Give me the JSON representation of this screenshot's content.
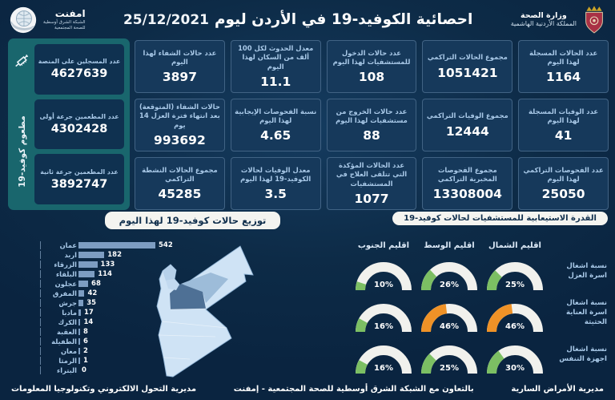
{
  "header": {
    "title": "احصائية الكوفيد-19 في الأردن ليوم",
    "date": "25/12/2021",
    "ministry": {
      "line1": "وزارة الصحة",
      "line2": "المملكة الأردنية الهاشمية"
    },
    "emphnet": {
      "name": "امفنت",
      "line1": "الشبكة الشرق أوسطية",
      "line2": "للصحة المجتمعية"
    }
  },
  "sidebar": {
    "vertical_label": "مطعوم كوفيد-19",
    "cards": [
      {
        "label": "عدد المسجلين على المنصة",
        "value": "4627639"
      },
      {
        "label": "عدد المطعمين جرعة أولى",
        "value": "4302428"
      },
      {
        "label": "عدد المطعمين جرعة ثانية",
        "value": "3892747"
      }
    ]
  },
  "stats": [
    {
      "label": "عدد الحالات المسجلة لهذا اليوم",
      "value": "1164"
    },
    {
      "label": "مجموع الحالات التراكمي",
      "value": "1051421"
    },
    {
      "label": "عدد حالات الدخول للمستشفيات لهذا اليوم",
      "value": "108"
    },
    {
      "label": "معدل الحدوث لكل 100 ألف من السكان لهذا اليوم",
      "value": "11.1"
    },
    {
      "label": "عدد حالات الشفاء لهذا اليوم",
      "value": "3897"
    },
    {
      "label": "عدد الوفيات المسجلة لهذا اليوم",
      "value": "41"
    },
    {
      "label": "مجموع الوفيات التراكمي",
      "value": "12444"
    },
    {
      "label": "عدد حالات الخروج من مستشفيات لهذا اليوم",
      "value": "88"
    },
    {
      "label": "نسبة الفحوصات الإيجابية لهذا اليوم",
      "value": "4.65"
    },
    {
      "label": "حالات الشفاء (المتوقعة) بعد انتهاء فترة العزل 14 يوم",
      "value": "993692"
    },
    {
      "label": "عدد الفحوصات التراكمي لهذا اليوم",
      "value": "25050"
    },
    {
      "label": "مجموع الفحوصات المخبرية التراكمي",
      "value": "13308004"
    },
    {
      "label": "عدد الحالات المؤكدة التي تتلقى العلاج في المستشفيات",
      "value": "1077"
    },
    {
      "label": "معدل الوفيات لحالات الكوفيد-19 لهذا اليوم",
      "value": "3.5"
    },
    {
      "label": "مجموع الحالات النشطة التراكمي",
      "value": "45285"
    }
  ],
  "chart_data": [
    {
      "type": "bar",
      "title": "توزيع حالات كوفيد-19 لهذا اليوم",
      "orientation": "horizontal",
      "categories": [
        "عمان",
        "اربد",
        "الزرقاء",
        "البلقاء",
        "عجلون",
        "المفرق",
        "جرش",
        "مادبا",
        "الكرك",
        "العقبة",
        "الطفيلة",
        "معان",
        "الرمثا",
        "البتراء"
      ],
      "values": [
        542,
        182,
        133,
        114,
        68,
        42,
        35,
        17,
        14,
        8,
        6,
        2,
        1,
        0
      ],
      "xlim": [
        0,
        542
      ],
      "bar_color": "#7d9dc2",
      "grid": "off",
      "legend": "none"
    },
    {
      "type": "gauge",
      "title": "القدرة الاستيعابية للمستشفيات لحالات كوفيد-19",
      "unit": "%",
      "columns": [
        "اقليم الشمال",
        "اقليم الوسط",
        "اقليم الجنوب"
      ],
      "rows": [
        {
          "label": "نسبة اشغال اسرة العزل",
          "values": [
            25,
            26,
            10
          ],
          "colors": [
            "#7cbf63",
            "#7cbf63",
            "#7cbf63"
          ]
        },
        {
          "label": "نسبة اشغال اسرة العناية الحثيثة",
          "values": [
            46,
            46,
            16
          ],
          "colors": [
            "#ef9227",
            "#ef9227",
            "#7cbf63"
          ]
        },
        {
          "label": "نسبة اشغال اجهزة التنفس",
          "values": [
            30,
            25,
            16
          ],
          "colors": [
            "#7cbf63",
            "#7cbf63",
            "#7cbf63"
          ]
        }
      ],
      "range": [
        0,
        100
      ]
    }
  ],
  "footer": {
    "right": "مديرية الأمراض السارية",
    "center": "بالتعاون مع الشبكة الشرق أوسطية للصحة المجتمعية - إمفنت",
    "left": "مديرية التحول الالكتروني وتكنولوجيا المعلومات"
  },
  "colors": {
    "background": "#0d2b47",
    "sidebar": "#19666d",
    "card": "#16395b",
    "label": "#a9c9e8",
    "bar": "#7d9dc2",
    "gauge_green": "#7cbf63",
    "gauge_orange": "#ef9227",
    "gauge_track": "#f1f1ed",
    "crest_red": "#a93145"
  }
}
